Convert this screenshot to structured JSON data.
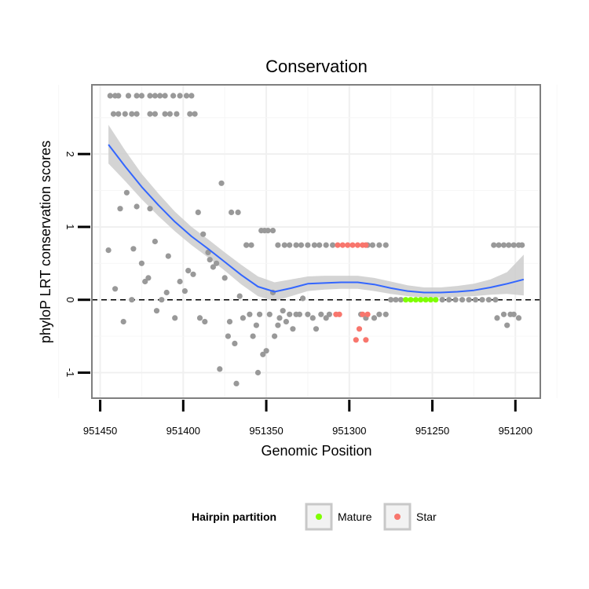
{
  "chart_data": {
    "type": "scatter",
    "title": "Conservation",
    "xlabel": "Genomic Position",
    "ylabel": "phyloP LRT conservation scores",
    "xlim": [
      951455,
      951185
    ],
    "ylim": [
      -1.35,
      2.95
    ],
    "x_reversed": true,
    "x_ticks": [
      951450,
      951400,
      951350,
      951300,
      951250,
      951200
    ],
    "x_tick_labels": [
      "951450",
      "951400",
      "951350",
      "951300",
      "951250",
      "951200"
    ],
    "y_ticks": [
      -1,
      0,
      1,
      2
    ],
    "y_tick_labels": [
      "-1",
      "0",
      "1",
      "2"
    ],
    "reference_line": {
      "y": 0,
      "style": "dashed",
      "color": "#000000"
    },
    "smooth": {
      "color": "#3366ff",
      "band_color": "#cccccc",
      "x": [
        951445,
        951435,
        951425,
        951415,
        951405,
        951395,
        951385,
        951375,
        951365,
        951355,
        951345,
        951335,
        951325,
        951315,
        951305,
        951295,
        951285,
        951275,
        951265,
        951255,
        951245,
        951235,
        951225,
        951215,
        951205,
        951195
      ],
      "y": [
        2.13,
        1.83,
        1.55,
        1.3,
        1.07,
        0.87,
        0.7,
        0.52,
        0.34,
        0.18,
        0.11,
        0.16,
        0.22,
        0.23,
        0.24,
        0.24,
        0.21,
        0.16,
        0.12,
        0.1,
        0.1,
        0.11,
        0.13,
        0.17,
        0.22,
        0.28
      ],
      "lower": [
        1.87,
        1.63,
        1.38,
        1.15,
        0.94,
        0.75,
        0.58,
        0.4,
        0.21,
        0.05,
        -0.02,
        0.05,
        0.12,
        0.14,
        0.15,
        0.15,
        0.12,
        0.08,
        0.05,
        0.03,
        0.03,
        0.04,
        0.05,
        0.07,
        0.08,
        0.06
      ],
      "upper": [
        2.4,
        2.05,
        1.73,
        1.46,
        1.21,
        1.0,
        0.83,
        0.65,
        0.48,
        0.32,
        0.24,
        0.28,
        0.32,
        0.33,
        0.33,
        0.33,
        0.3,
        0.25,
        0.2,
        0.17,
        0.17,
        0.19,
        0.22,
        0.28,
        0.38,
        0.62
      ]
    },
    "series": [
      {
        "name": "Other",
        "color": "#999999",
        "in_legend": false,
        "points": [
          [
            951444,
            2.8
          ],
          [
            951441,
            2.8
          ],
          [
            951439,
            2.8
          ],
          [
            951433,
            2.8
          ],
          [
            951428,
            2.8
          ],
          [
            951425,
            2.8
          ],
          [
            951420,
            2.8
          ],
          [
            951417,
            2.8
          ],
          [
            951414,
            2.8
          ],
          [
            951411,
            2.8
          ],
          [
            951406,
            2.8
          ],
          [
            951402,
            2.8
          ],
          [
            951398,
            2.8
          ],
          [
            951395,
            2.8
          ],
          [
            951442,
            2.55
          ],
          [
            951439,
            2.55
          ],
          [
            951435,
            2.55
          ],
          [
            951431,
            2.55
          ],
          [
            951428,
            2.55
          ],
          [
            951420,
            2.55
          ],
          [
            951417,
            2.55
          ],
          [
            951411,
            2.55
          ],
          [
            951408,
            2.55
          ],
          [
            951404,
            2.55
          ],
          [
            951396,
            2.55
          ],
          [
            951393,
            2.55
          ],
          [
            951445,
            0.68
          ],
          [
            951441,
            0.15
          ],
          [
            951438,
            1.25
          ],
          [
            951436,
            -0.3
          ],
          [
            951434,
            1.47
          ],
          [
            951431,
            0.0
          ],
          [
            951430,
            0.7
          ],
          [
            951428,
            1.28
          ],
          [
            951425,
            0.5
          ],
          [
            951423,
            0.25
          ],
          [
            951421,
            0.3
          ],
          [
            951420,
            1.25
          ],
          [
            951417,
            0.8
          ],
          [
            951416,
            -0.15
          ],
          [
            951413,
            0.0
          ],
          [
            951410,
            0.1
          ],
          [
            951409,
            0.6
          ],
          [
            951405,
            -0.25
          ],
          [
            951402,
            0.25
          ],
          [
            951399,
            0.12
          ],
          [
            951397,
            0.4
          ],
          [
            951394,
            0.35
          ],
          [
            951391,
            1.2
          ],
          [
            951390,
            -0.25
          ],
          [
            951388,
            0.9
          ],
          [
            951387,
            -0.3
          ],
          [
            951385,
            0.65
          ],
          [
            951384,
            0.55
          ],
          [
            951382,
            0.45
          ],
          [
            951380,
            0.5
          ],
          [
            951378,
            -0.95
          ],
          [
            951377,
            1.6
          ],
          [
            951375,
            0.3
          ],
          [
            951373,
            -0.5
          ],
          [
            951372,
            -0.3
          ],
          [
            951371,
            1.2
          ],
          [
            951369,
            -0.6
          ],
          [
            951368,
            -1.15
          ],
          [
            951367,
            1.2
          ],
          [
            951366,
            0.05
          ],
          [
            951364,
            -0.25
          ],
          [
            951362,
            0.75
          ],
          [
            951360,
            -0.2
          ],
          [
            951358,
            -0.5
          ],
          [
            951356,
            -0.35
          ],
          [
            951355,
            -1.0
          ],
          [
            951354,
            -0.2
          ],
          [
            951352,
            -0.75
          ],
          [
            951350,
            -0.7
          ],
          [
            951348,
            -0.2
          ],
          [
            951346,
            0.1
          ],
          [
            951345,
            -0.5
          ],
          [
            951343,
            -0.35
          ],
          [
            951342,
            -0.25
          ],
          [
            951340,
            -0.15
          ],
          [
            951338,
            -0.3
          ],
          [
            951336,
            -0.2
          ],
          [
            951334,
            -0.4
          ],
          [
            951332,
            -0.2
          ],
          [
            951330,
            -0.2
          ],
          [
            951328,
            0.02
          ],
          [
            951325,
            -0.2
          ],
          [
            951322,
            -0.25
          ],
          [
            951320,
            -0.4
          ],
          [
            951317,
            -0.2
          ],
          [
            951314,
            -0.25
          ],
          [
            951312,
            -0.2
          ],
          [
            951293,
            -0.2
          ],
          [
            951290,
            -0.25
          ],
          [
            951285,
            -0.25
          ],
          [
            951282,
            -0.2
          ],
          [
            951278,
            -0.2
          ],
          [
            951362,
            0.75
          ],
          [
            951359,
            0.75
          ],
          [
            951353,
            0.95
          ],
          [
            951351,
            0.95
          ],
          [
            951349,
            0.95
          ],
          [
            951346,
            0.95
          ],
          [
            951343,
            0.75
          ],
          [
            951339,
            0.75
          ],
          [
            951336,
            0.75
          ],
          [
            951332,
            0.75
          ],
          [
            951329,
            0.75
          ],
          [
            951325,
            0.75
          ],
          [
            951321,
            0.75
          ],
          [
            951318,
            0.75
          ],
          [
            951314,
            0.75
          ],
          [
            951310,
            0.75
          ],
          [
            951289,
            0.75
          ],
          [
            951286,
            0.75
          ],
          [
            951282,
            0.75
          ],
          [
            951278,
            0.75
          ],
          [
            951275,
            0.0
          ],
          [
            951272,
            0.0
          ],
          [
            951269,
            0.0
          ],
          [
            951244,
            0.0
          ],
          [
            951240,
            0.0
          ],
          [
            951236,
            0.0
          ],
          [
            951232,
            0.0
          ],
          [
            951228,
            0.0
          ],
          [
            951224,
            0.0
          ],
          [
            951220,
            0.0
          ],
          [
            951216,
            0.0
          ],
          [
            951212,
            0.0
          ],
          [
            951213,
            0.75
          ],
          [
            951210,
            0.75
          ],
          [
            951207,
            0.75
          ],
          [
            951204,
            0.75
          ],
          [
            951201,
            0.75
          ],
          [
            951198,
            0.75
          ],
          [
            951196,
            0.75
          ],
          [
            951211,
            -0.25
          ],
          [
            951207,
            -0.2
          ],
          [
            951205,
            -0.35
          ],
          [
            951203,
            -0.2
          ],
          [
            951201,
            -0.2
          ],
          [
            951198,
            -0.25
          ]
        ]
      },
      {
        "name": "Mature",
        "color": "#7fff00",
        "in_legend": true,
        "points": [
          [
            951266,
            0.0
          ],
          [
            951263,
            0.0
          ],
          [
            951260,
            0.0
          ],
          [
            951257,
            0.0
          ],
          [
            951254,
            0.0
          ],
          [
            951251,
            0.0
          ],
          [
            951248,
            0.0
          ]
        ]
      },
      {
        "name": "Star",
        "color": "#f8766d",
        "in_legend": true,
        "points": [
          [
            951307,
            0.75
          ],
          [
            951304,
            0.75
          ],
          [
            951301,
            0.75
          ],
          [
            951298,
            0.75
          ],
          [
            951295,
            0.75
          ],
          [
            951292,
            0.75
          ],
          [
            951290,
            0.75
          ],
          [
            951308,
            -0.2
          ],
          [
            951306,
            -0.2
          ],
          [
            951296,
            -0.55
          ],
          [
            951294,
            -0.4
          ],
          [
            951292,
            -0.2
          ],
          [
            951289,
            -0.2
          ],
          [
            951290,
            -0.55
          ]
        ]
      }
    ],
    "legend": {
      "title": "Hairpin partition",
      "position": "bottom",
      "entries": [
        {
          "label": "Mature",
          "color": "#7fff00"
        },
        {
          "label": "Star",
          "color": "#f8766d"
        }
      ]
    }
  }
}
